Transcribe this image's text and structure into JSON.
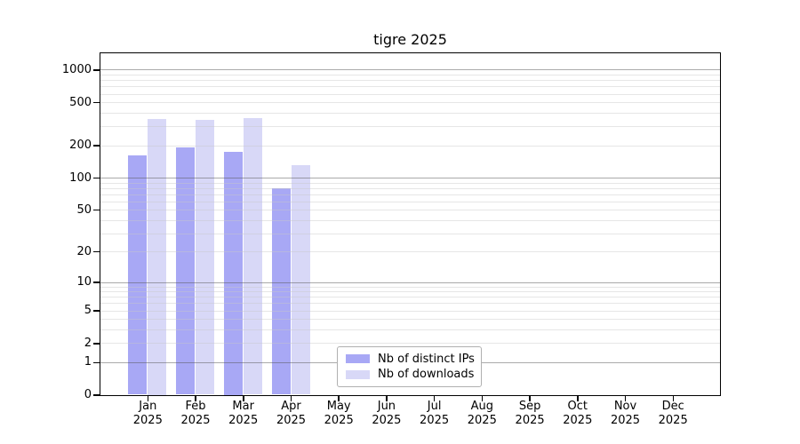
{
  "chart_data": {
    "type": "bar",
    "title": "tigre 2025",
    "categories": [
      "Jan\n2025",
      "Feb\n2025",
      "Mar\n2025",
      "Apr\n2025",
      "May\n2025",
      "Jun\n2025",
      "Jul\n2025",
      "Aug\n2025",
      "Sep\n2025",
      "Oct\n2025",
      "Nov\n2025",
      "Dec\n2025"
    ],
    "series": [
      {
        "name": "Nb of distinct IPs",
        "color": "#a8a8f5",
        "values": [
          160,
          190,
          175,
          80,
          0,
          0,
          0,
          0,
          0,
          0,
          0,
          0
        ]
      },
      {
        "name": "Nb of downloads",
        "color": "#d8d8f7",
        "values": [
          350,
          345,
          355,
          130,
          0,
          0,
          0,
          0,
          0,
          0,
          0,
          0
        ]
      }
    ],
    "xlabel": "",
    "ylabel": "",
    "yscale": "log1p",
    "yticks": [
      0,
      1,
      2,
      5,
      10,
      20,
      50,
      100,
      200,
      500,
      1000
    ],
    "ylim": [
      0,
      1430
    ],
    "grid": "horizontal major and minor",
    "legend_position": "lower center inside",
    "colors": {
      "axis": "#000000",
      "major_grid": "#ababab",
      "minor_grid": "#e7e7e7",
      "background": "#ffffff"
    }
  }
}
